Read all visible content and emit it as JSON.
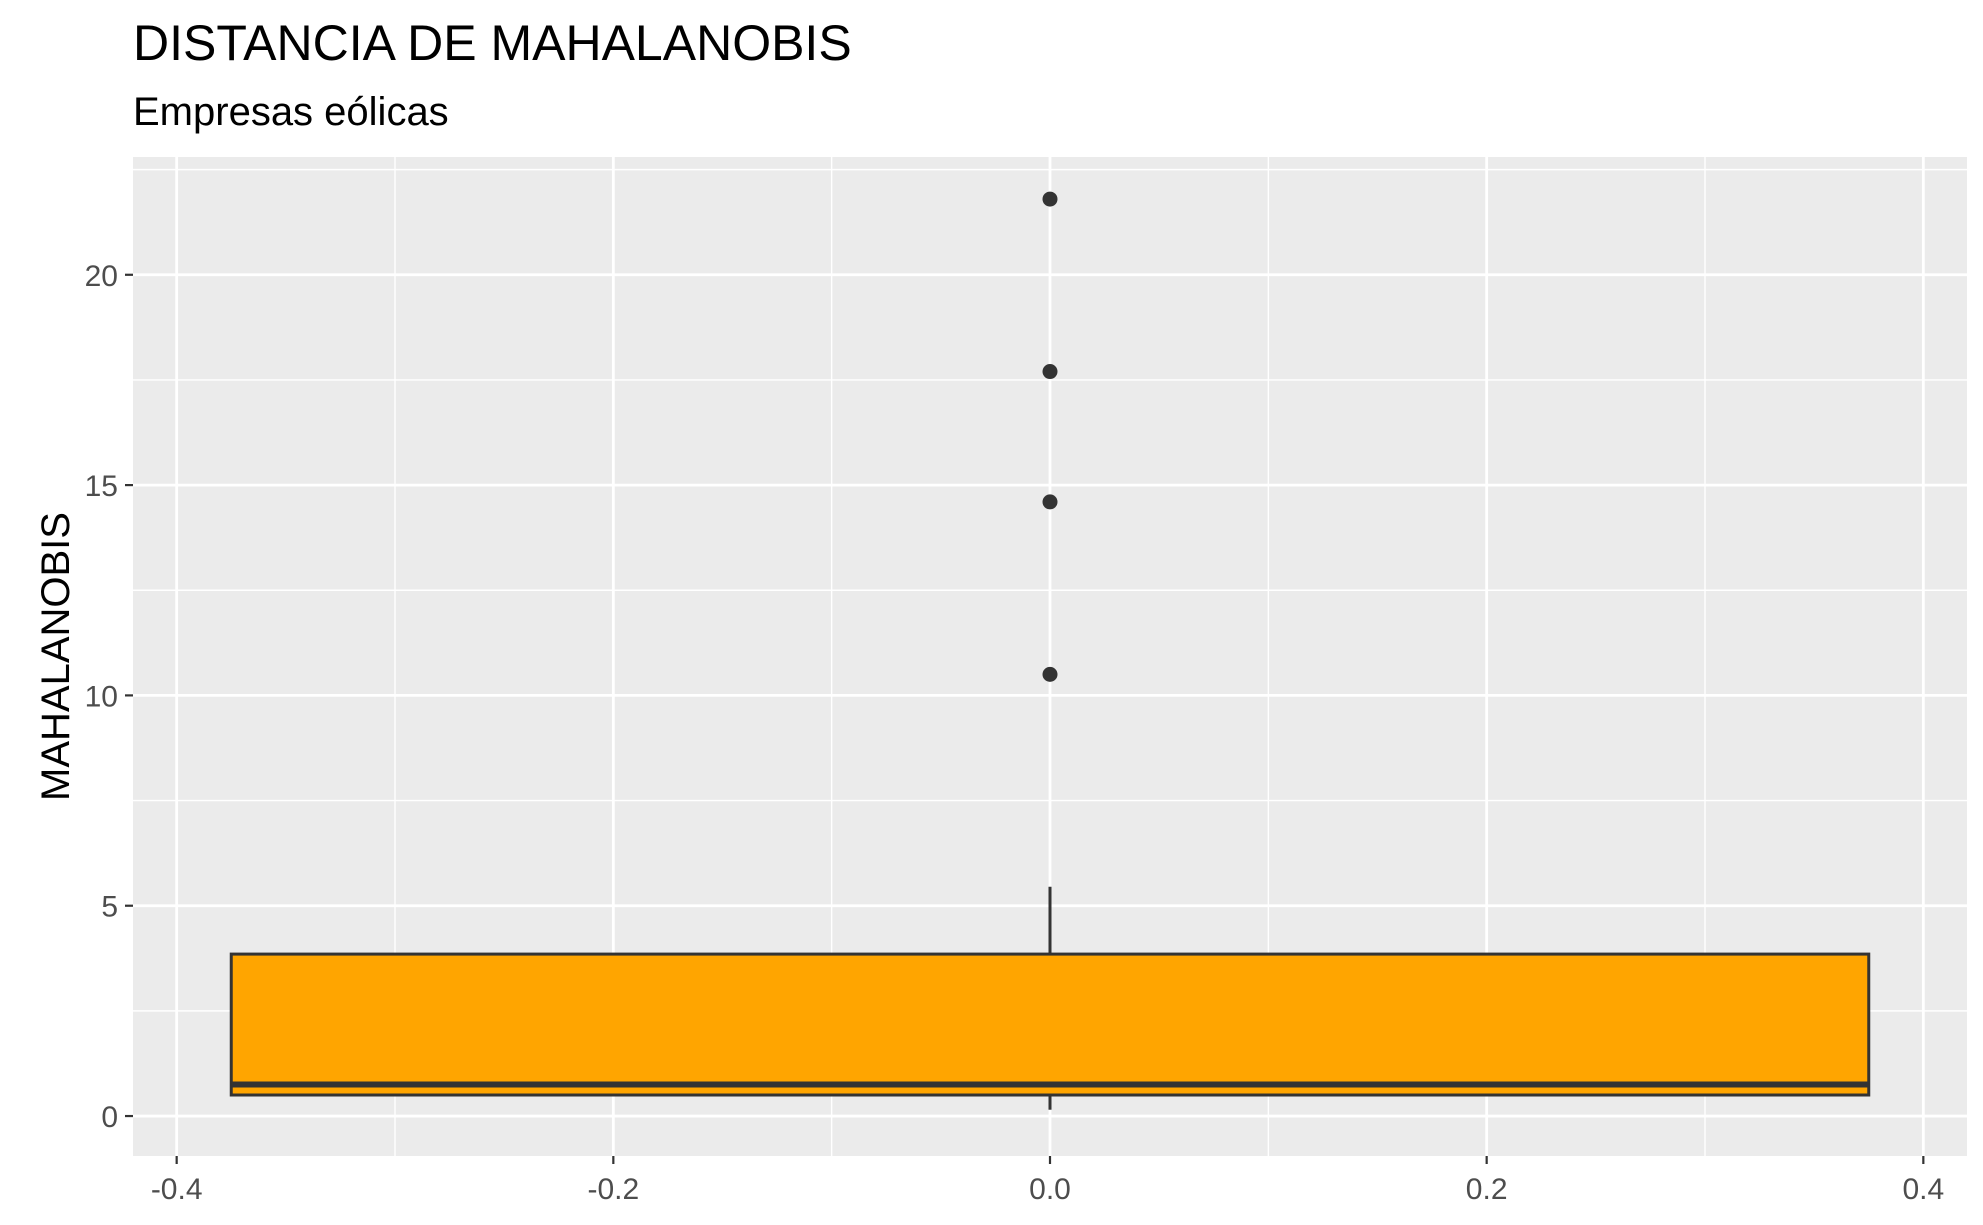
{
  "chart_data": {
    "type": "box",
    "title": "DISTANCIA DE MAHALANOBIS",
    "subtitle": "Empresas eólicas",
    "xlabel": "",
    "ylabel": "MAHALANOBIS",
    "xlim": [
      -0.42,
      0.42
    ],
    "ylim": [
      -0.95,
      22.8
    ],
    "x_ticks": [
      -0.4,
      -0.2,
      0.0,
      0.2,
      0.4
    ],
    "x_tick_labels": [
      "-0.4",
      "-0.2",
      "0.0",
      "0.2",
      "0.4"
    ],
    "y_ticks": [
      0,
      5,
      10,
      15,
      20
    ],
    "y_tick_labels": [
      "0",
      "5",
      "10",
      "15",
      "20"
    ],
    "grid": true,
    "box": {
      "x_center": 0.0,
      "x_left": -0.375,
      "x_right": 0.375,
      "whisker_low": 0.15,
      "q1": 0.5,
      "median": 0.75,
      "q3": 3.85,
      "whisker_high": 5.45,
      "outliers": [
        10.5,
        14.6,
        17.7,
        21.8
      ]
    },
    "colors": {
      "panel_background": "#ebebeb",
      "grid": "#ffffff",
      "box_fill": "#ffa500",
      "box_line": "#333333",
      "outlier": "#333333",
      "tick_label": "#4d4d4d"
    }
  }
}
